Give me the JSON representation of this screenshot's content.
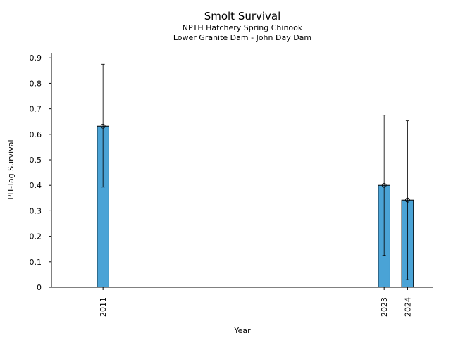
{
  "chart_data": {
    "type": "bar",
    "title": "Smolt Survival",
    "subtitle_lines": [
      "NPTH Hatchery Spring Chinook",
      "Lower Granite Dam - John Day Dam"
    ],
    "xlabel": "Year",
    "ylabel": "PIT-Tag Survival",
    "categories": [
      "2011",
      "2023",
      "2024"
    ],
    "values": [
      0.632,
      0.4,
      0.342
    ],
    "error_low": [
      0.393,
      0.125,
      0.03
    ],
    "error_high": [
      0.875,
      0.675,
      0.653
    ],
    "x_range": [
      2008.8,
      2025.1
    ],
    "ylim": [
      0,
      0.92
    ],
    "yticks": [
      0,
      0.1,
      0.2,
      0.3,
      0.4,
      0.5,
      0.6,
      0.7,
      0.8,
      0.9
    ],
    "ytick_labels": [
      "0",
      "0.1",
      "0.2",
      "0.3",
      "0.4",
      "0.5",
      "0.6",
      "0.7",
      "0.8",
      "0.9"
    ],
    "bar_width_years": 0.5,
    "bar_color": "#4aa3d6",
    "edge_color": "#000000",
    "grid": false,
    "legend": "none"
  }
}
